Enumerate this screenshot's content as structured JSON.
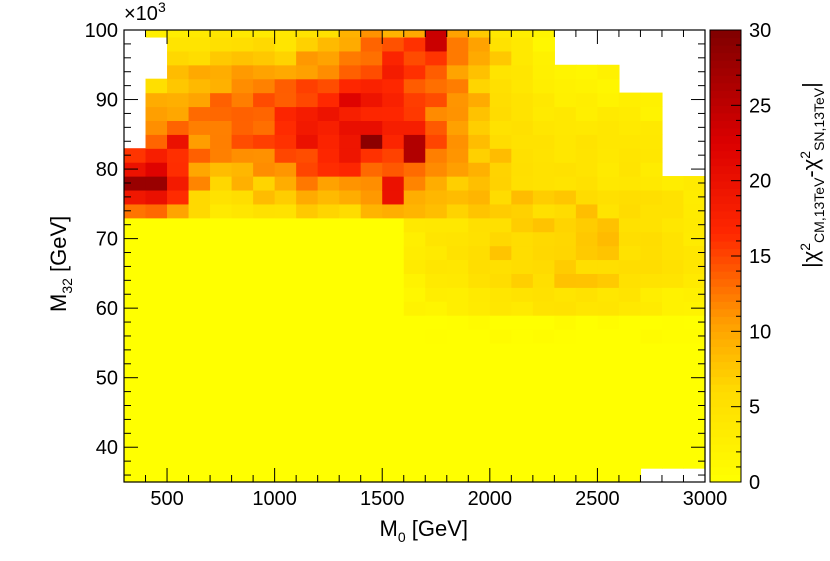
{
  "chart_data": {
    "type": "heatmap",
    "x_title": "M",
    "x_title_sub": "0",
    "x_title_unit": " [GeV]",
    "y_title": "M",
    "y_title_sub": "32",
    "y_title_unit": " [GeV]",
    "y_multiplier": "×10",
    "y_multiplier_exp": "3",
    "colorbar_title_open": "|χ",
    "colorbar_title_sup1": "2",
    "colorbar_title_sub1": "CM,13TeV",
    "colorbar_title_mid": "-χ",
    "colorbar_title_sup2": "2",
    "colorbar_title_sub2": "SN,13TeV",
    "colorbar_title_close": "|",
    "xlim": [
      300,
      3000
    ],
    "ylim": [
      35000,
      100000
    ],
    "zlim": [
      0,
      30
    ],
    "x_ticks": [
      500,
      1000,
      1500,
      2000,
      2500,
      3000
    ],
    "x_tick_labels": [
      "500",
      "1000",
      "1500",
      "2000",
      "2500",
      "3000"
    ],
    "y_ticks": [
      40000,
      50000,
      60000,
      70000,
      80000,
      90000,
      100000
    ],
    "y_tick_labels": [
      "40",
      "50",
      "60",
      "70",
      "80",
      "90",
      "100"
    ],
    "z_ticks": [
      0,
      5,
      10,
      15,
      20,
      25,
      30
    ],
    "z_tick_labels": [
      "0",
      "5",
      "10",
      "15",
      "20",
      "25",
      "30"
    ],
    "grid": false,
    "colors": {
      "low": "#ffff00",
      "mid": "#ff9900",
      "high": "#ff1a00",
      "max": "#800000",
      "axis": "#000000",
      "background": "#ffffff"
    },
    "bins": {
      "x_start": 300,
      "x_step": 100,
      "nx": 27,
      "y_start": 35000,
      "y_step": 2000,
      "ny": 33
    },
    "empty_regions": [
      {
        "x": [
          300,
          400
        ],
        "y": [
          97000,
          100000
        ]
      },
      {
        "x": [
          300,
          500
        ],
        "y": [
          93000,
          99000
        ]
      },
      {
        "x": [
          300,
          400
        ],
        "y": [
          83000,
          93000
        ]
      },
      {
        "x": [
          2300,
          2600
        ],
        "y": [
          96000,
          100000
        ]
      },
      {
        "x": [
          2600,
          3000
        ],
        "y": [
          91000,
          100000
        ]
      },
      {
        "x": [
          2850,
          3000
        ],
        "y": [
          80000,
          91000
        ]
      },
      {
        "x": [
          300,
          350
        ],
        "y": [
          64000,
          68000
        ]
      },
      {
        "x": [
          300,
          350
        ],
        "y": [
          55000,
          58000
        ]
      },
      {
        "x": [
          2750,
          3000
        ],
        "y": [
          35000,
          37000
        ]
      }
    ],
    "hotspots": [
      {
        "x": 1450,
        "y": 84000,
        "z": 29
      },
      {
        "x": 400,
        "y": 78000,
        "z": 28
      },
      {
        "x": 1650,
        "y": 83000,
        "z": 26
      },
      {
        "x": 1750,
        "y": 98500,
        "z": 24
      },
      {
        "x": 1350,
        "y": 90000,
        "z": 22
      },
      {
        "x": 550,
        "y": 84000,
        "z": 20
      },
      {
        "x": 1150,
        "y": 84000,
        "z": 20
      },
      {
        "x": 1550,
        "y": 77000,
        "z": 20
      }
    ]
  }
}
